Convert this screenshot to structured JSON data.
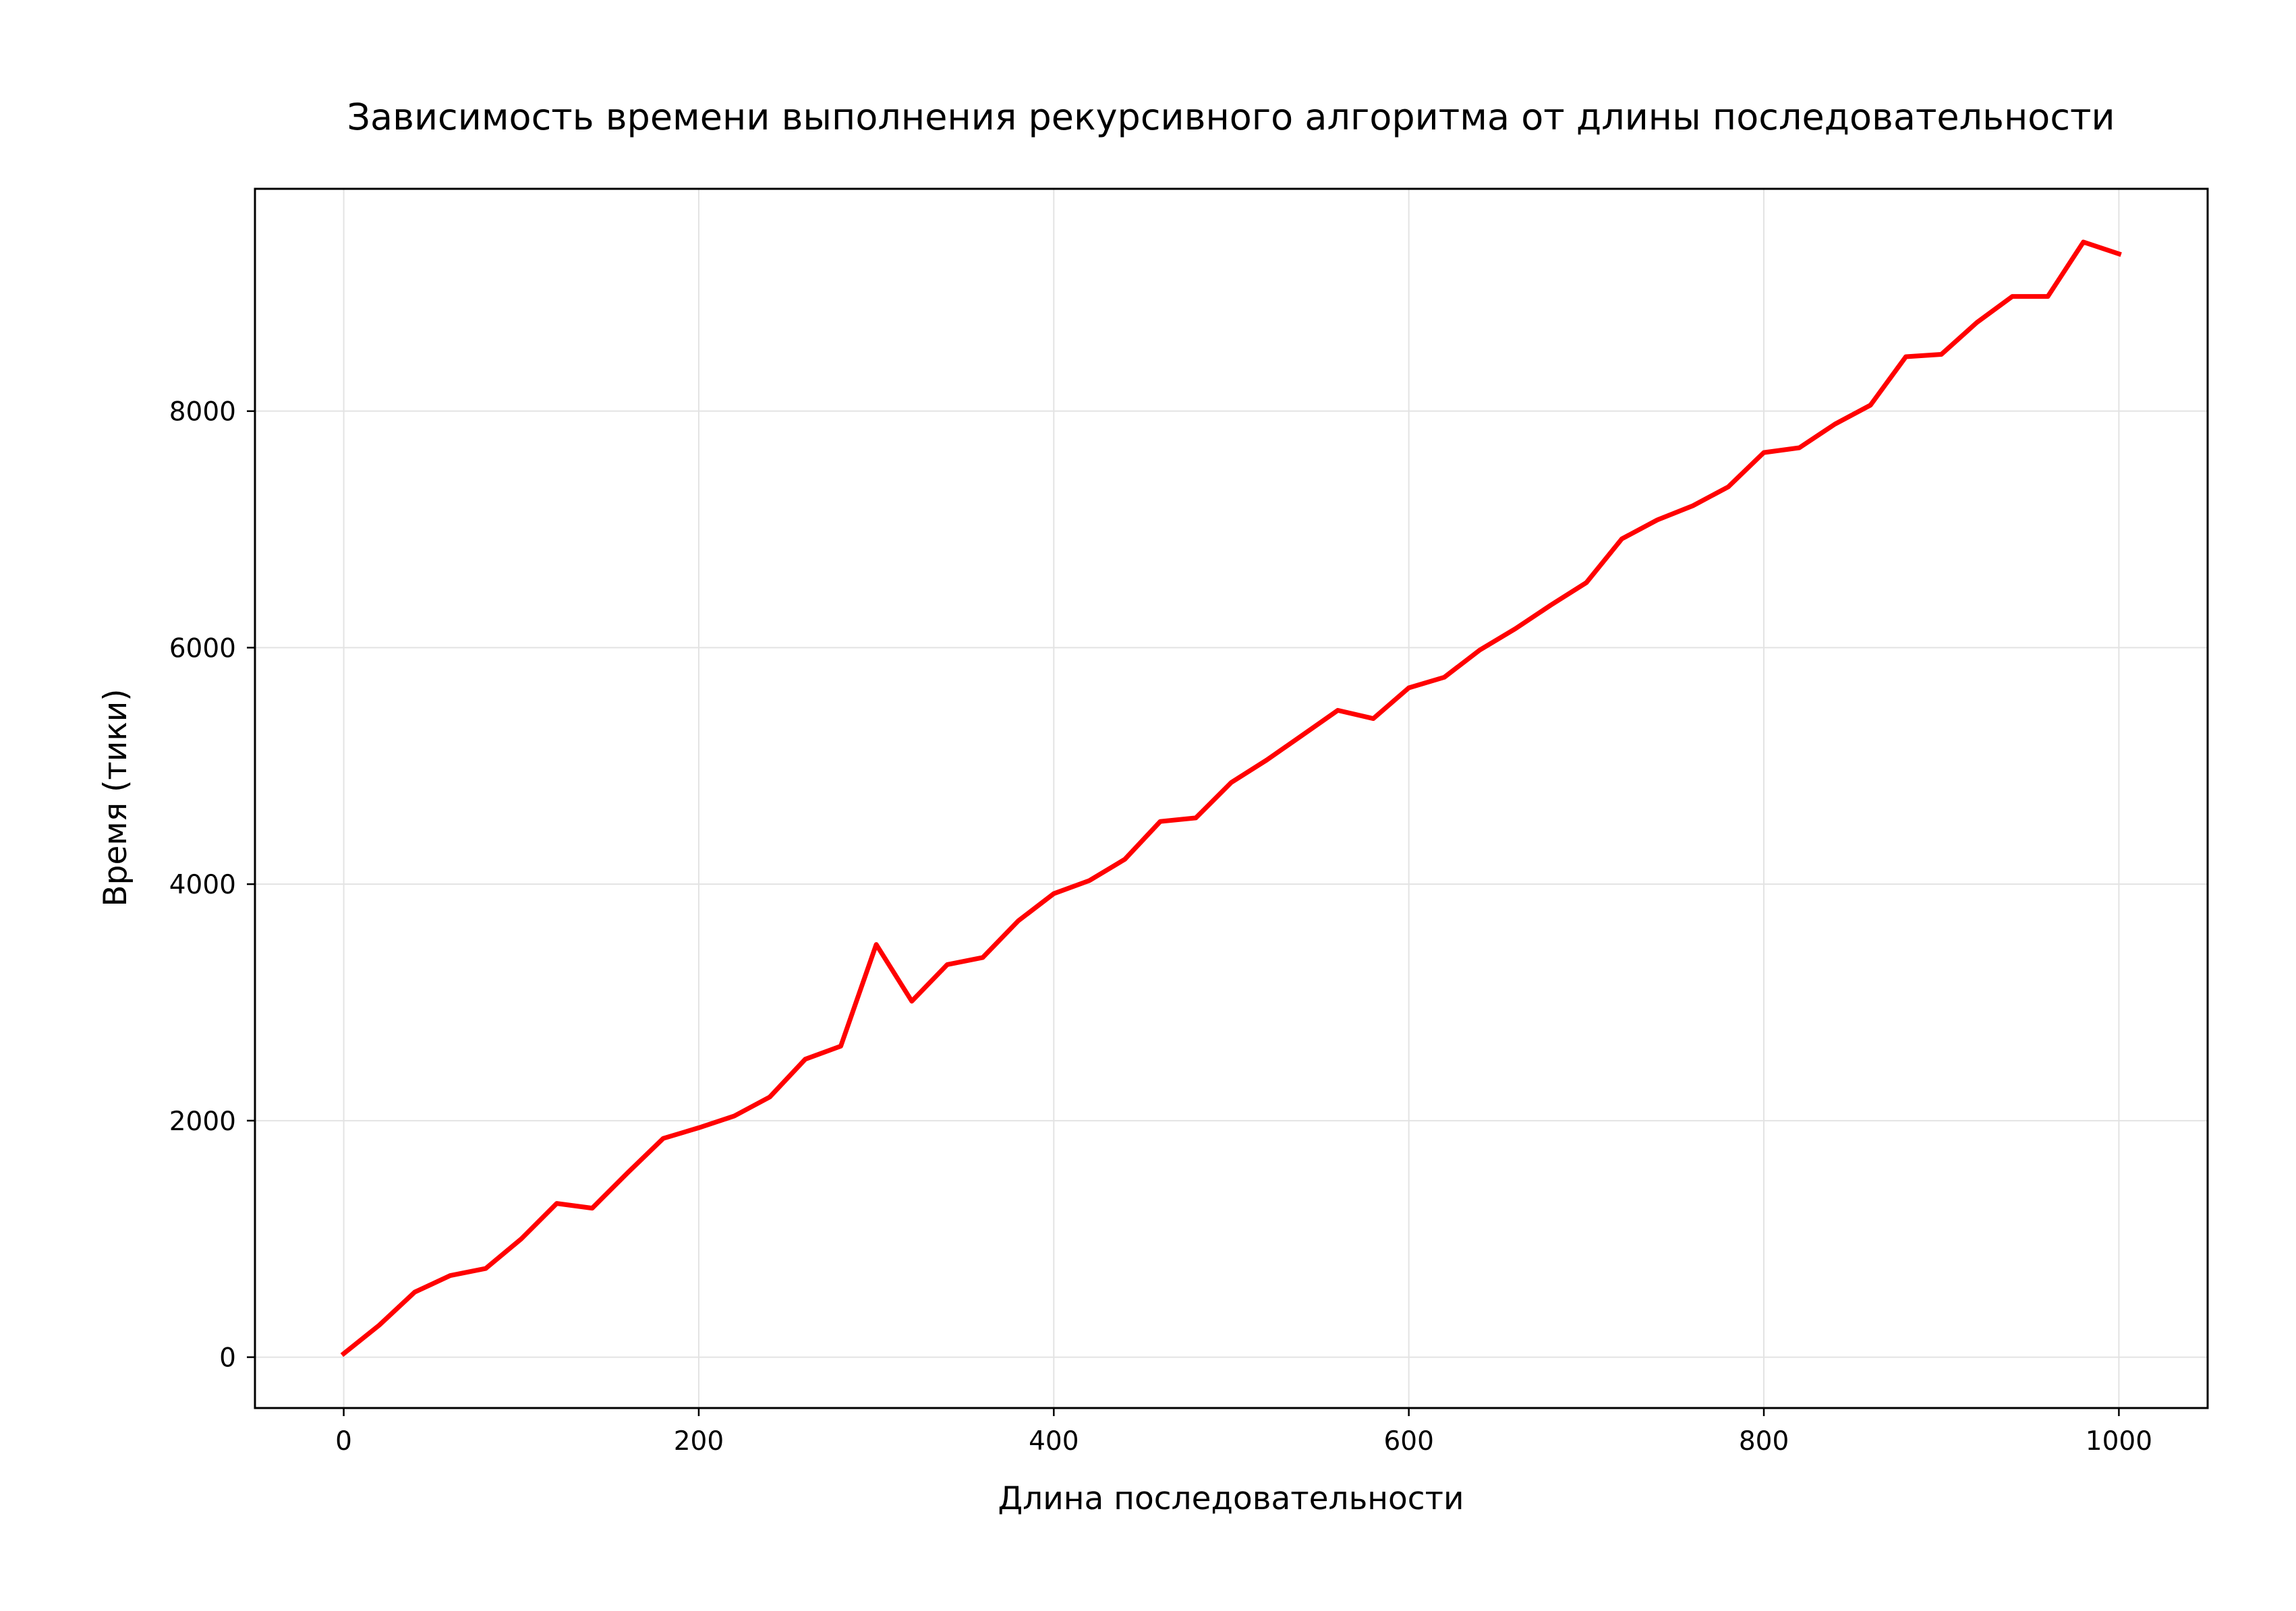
{
  "chart_data": {
    "type": "line",
    "title": "Зависимость времени выполнения рекурсивного алгоритма от длины последовательности",
    "xlabel": "Длина последовательности",
    "ylabel": "Время (тики)",
    "xlim": [
      -50,
      1050
    ],
    "ylim": [
      -430,
      9880
    ],
    "x_ticks": [
      0,
      200,
      400,
      600,
      800,
      1000
    ],
    "y_ticks": [
      0,
      2000,
      4000,
      6000,
      8000
    ],
    "grid": true,
    "line_color": "#ff0000",
    "series": [
      {
        "x": [
          0,
          20,
          40,
          60,
          80,
          100,
          120,
          140,
          160,
          180,
          200,
          220,
          240,
          260,
          280,
          300,
          320,
          340,
          360,
          380,
          400,
          420,
          440,
          460,
          480,
          500,
          520,
          540,
          560,
          580,
          600,
          620,
          640,
          660,
          680,
          700,
          720,
          740,
          760,
          780,
          800,
          820,
          840,
          860,
          880,
          900,
          920,
          940,
          960,
          980,
          1000
        ],
        "y": [
          30,
          270,
          550,
          690,
          750,
          1000,
          1300,
          1260,
          1560,
          1850,
          1940,
          2040,
          2200,
          2520,
          2630,
          3490,
          3010,
          3320,
          3380,
          3690,
          3920,
          4030,
          4210,
          4530,
          4560,
          4860,
          5050,
          5260,
          5470,
          5400,
          5660,
          5750,
          5980,
          6160,
          6360,
          6550,
          6920,
          7080,
          7200,
          7360,
          7650,
          7690,
          7890,
          8050,
          8460,
          8480,
          8750,
          8970,
          8970,
          9430,
          9330
        ]
      }
    ]
  }
}
